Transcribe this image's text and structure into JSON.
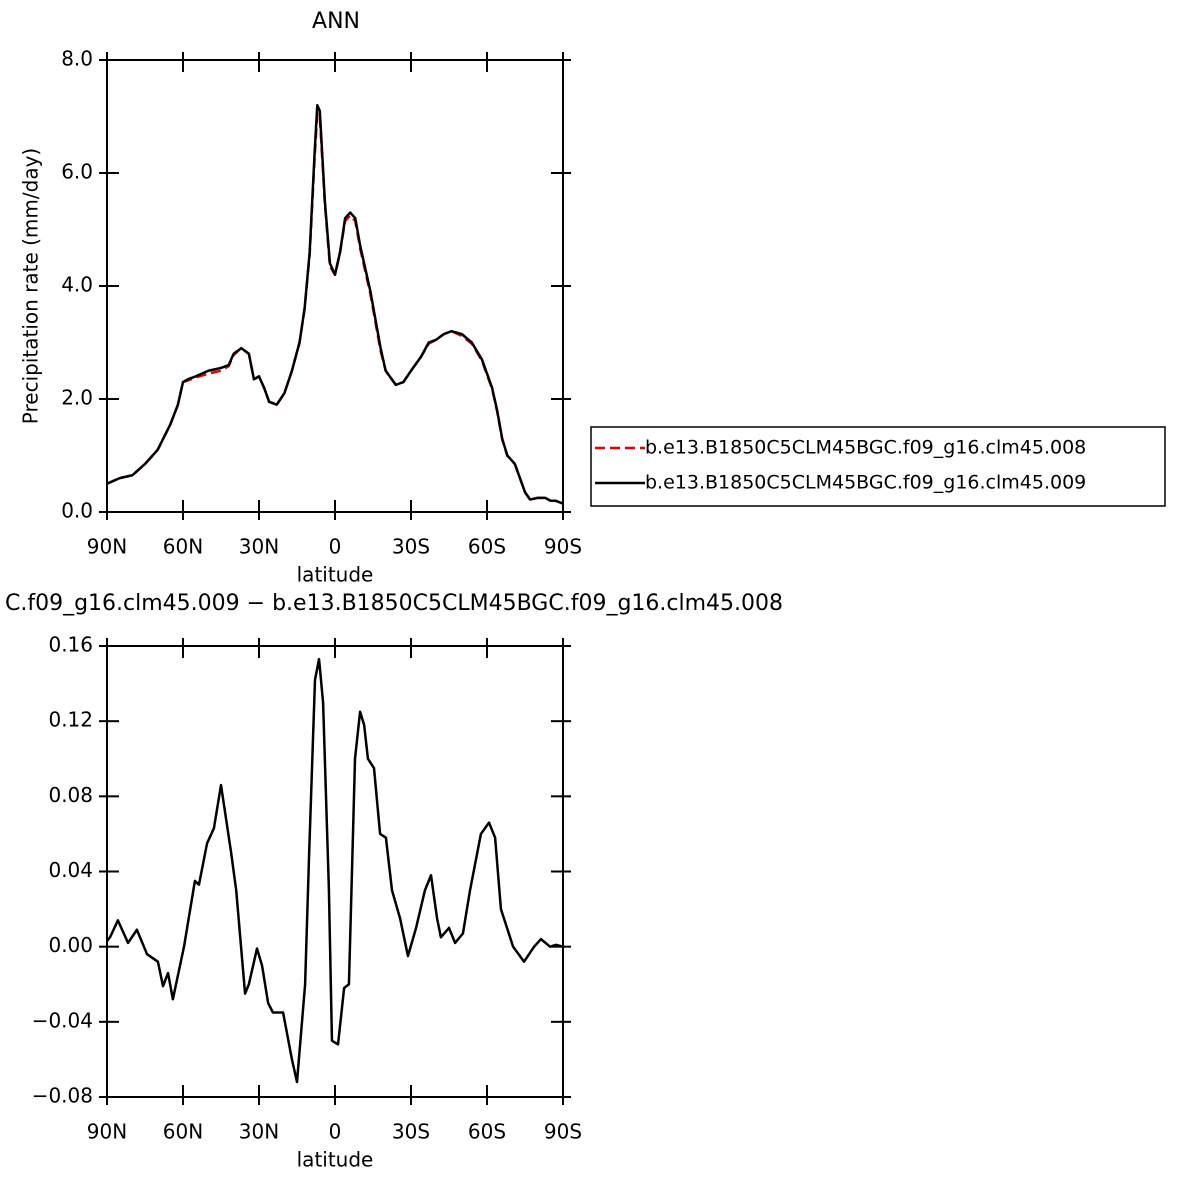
{
  "chart_data": [
    {
      "type": "line",
      "title": "ANN",
      "ylabel": "Precipitation rate (mm/day)",
      "xlabel": "latitude",
      "xlim": [
        90,
        -90
      ],
      "xticks": [
        {
          "value": 90,
          "label": "90N"
        },
        {
          "value": 60,
          "label": "60N"
        },
        {
          "value": 30,
          "label": "30N"
        },
        0,
        {
          "value": -30,
          "label": "30S"
        },
        {
          "value": -60,
          "label": "60S"
        },
        {
          "value": -90,
          "label": "90S"
        }
      ],
      "ylim": [
        0,
        8
      ],
      "yticks": [
        {
          "value": 0,
          "label": "0.0"
        },
        {
          "value": 2,
          "label": "2.0"
        },
        {
          "value": 4,
          "label": "4.0"
        },
        {
          "value": 6,
          "label": "6.0"
        },
        {
          "value": 8,
          "label": "8.0"
        }
      ],
      "x": [
        90,
        85,
        80,
        75,
        70,
        65,
        62,
        60,
        58,
        55,
        50,
        45,
        42,
        40,
        37,
        34,
        32,
        30,
        28,
        26,
        23,
        20,
        17,
        14,
        12,
        10,
        8,
        7,
        6,
        4,
        2,
        0,
        -2,
        -4,
        -6,
        -8,
        -10,
        -14,
        -16,
        -18,
        -20,
        -24,
        -27,
        -30,
        -34,
        -37,
        -40,
        -43,
        -46,
        -50,
        -54,
        -58,
        -62,
        -64,
        -66,
        -68,
        -71,
        -73,
        -75,
        -77,
        -80,
        -83,
        -85,
        -87,
        -90
      ],
      "series": [
        {
          "name": "b.e13.B1850C5CLM45BGC.f09_g16.clm45.008",
          "color": "#e00000",
          "dash": true,
          "values": [
            0.5,
            0.6,
            0.65,
            0.85,
            1.1,
            1.55,
            1.9,
            2.3,
            2.33,
            2.38,
            2.45,
            2.5,
            2.58,
            2.78,
            2.9,
            2.8,
            2.35,
            2.4,
            2.2,
            1.95,
            1.9,
            2.1,
            2.5,
            3.0,
            3.6,
            4.55,
            6.3,
            7.05,
            7.0,
            5.45,
            4.35,
            4.2,
            4.6,
            5.15,
            5.25,
            5.15,
            4.65,
            3.85,
            3.35,
            2.85,
            2.5,
            2.25,
            2.3,
            2.5,
            2.75,
            2.98,
            3.05,
            3.15,
            3.2,
            3.12,
            2.98,
            2.68,
            2.18,
            1.78,
            1.28,
            1.0,
            0.85,
            0.6,
            0.35,
            0.22,
            0.25,
            0.25,
            0.2,
            0.2,
            0.15
          ]
        },
        {
          "name": "b.e13.B1850C5CLM45BGC.f09_g16.clm45.009",
          "color": "#000000",
          "dash": false,
          "values": [
            0.5,
            0.6,
            0.65,
            0.85,
            1.1,
            1.55,
            1.9,
            2.3,
            2.35,
            2.4,
            2.5,
            2.55,
            2.6,
            2.8,
            2.9,
            2.8,
            2.35,
            2.4,
            2.2,
            1.95,
            1.9,
            2.1,
            2.5,
            3.0,
            3.6,
            4.6,
            6.4,
            7.2,
            7.1,
            5.5,
            4.4,
            4.2,
            4.6,
            5.2,
            5.3,
            5.2,
            4.7,
            3.9,
            3.4,
            2.9,
            2.5,
            2.25,
            2.3,
            2.5,
            2.75,
            3.0,
            3.05,
            3.15,
            3.2,
            3.15,
            3.0,
            2.7,
            2.2,
            1.8,
            1.3,
            1.0,
            0.85,
            0.6,
            0.35,
            0.22,
            0.25,
            0.25,
            0.2,
            0.2,
            0.15
          ]
        }
      ]
    },
    {
      "type": "line",
      "title": "C.f09_g16.clm45.009 − b.e13.B1850C5CLM45BGC.f09_g16.clm45.008",
      "xlabel": "latitude",
      "xlim": [
        90,
        -90
      ],
      "xticks": [
        {
          "value": 90,
          "label": "90N"
        },
        {
          "value": 60,
          "label": "60N"
        },
        {
          "value": 30,
          "label": "30N"
        },
        0,
        {
          "value": -30,
          "label": "30S"
        },
        {
          "value": -60,
          "label": "60S"
        },
        {
          "value": -90,
          "label": "90S"
        }
      ],
      "ylim": [
        -0.08,
        0.16
      ],
      "yticks": [
        {
          "value": -0.08,
          "label": "−0.08"
        },
        {
          "value": -0.04,
          "label": "−0.04"
        },
        {
          "value": 0,
          "label": "0.00"
        },
        0.04,
        0.08,
        0.12,
        0.16
      ],
      "x": [
        90,
        88.8,
        85.7,
        81.7,
        78.2,
        74.2,
        69.9,
        67.9,
        65.9,
        64,
        59.6,
        55.3,
        53.7,
        50.5,
        47.8,
        45,
        41,
        39,
        35.5,
        34,
        30.8,
        28.8,
        26.4,
        24.5,
        20.5,
        17,
        15,
        11.8,
        10.2,
        7.9,
        6.3,
        4.7,
        2.4,
        1.2,
        -1.2,
        -3.6,
        -5.5,
        -7.9,
        -9.9,
        -11.5,
        -13,
        -15.4,
        -17.8,
        -20.1,
        -22.5,
        -25.7,
        -28.8,
        -32,
        -35.5,
        -37.9,
        -40.3,
        -41.8,
        -45,
        -47.4,
        -50.5,
        -53.3,
        -57.6,
        -60.8,
        -63.2,
        -65.5,
        -67.9,
        -70.3,
        -74.6,
        -78.6,
        -81.3,
        -84.9,
        -87.3,
        -90
      ],
      "series": [
        {
          "name": null,
          "color": "#000000",
          "dash": false,
          "values": [
            0.003,
            0.005,
            0.014,
            0.002,
            0.009,
            -0.004,
            -0.008,
            -0.021,
            -0.014,
            -0.028,
            0.0,
            0.035,
            0.033,
            0.055,
            0.063,
            0.086,
            0.05,
            0.03,
            -0.025,
            -0.02,
            -0.001,
            -0.01,
            -0.03,
            -0.035,
            -0.035,
            -0.06,
            -0.072,
            -0.02,
            0.05,
            0.142,
            0.153,
            0.13,
            0.03,
            -0.05,
            -0.052,
            -0.022,
            -0.02,
            0.1,
            0.125,
            0.118,
            0.1,
            0.095,
            0.06,
            0.058,
            0.03,
            0.015,
            -0.005,
            0.01,
            0.03,
            0.038,
            0.015,
            0.005,
            0.01,
            0.002,
            0.007,
            0.03,
            0.06,
            0.066,
            0.058,
            0.02,
            0.01,
            0.0,
            -0.008,
            0.0,
            0.004,
            0.0,
            0.001,
            0.0
          ]
        }
      ]
    }
  ]
}
